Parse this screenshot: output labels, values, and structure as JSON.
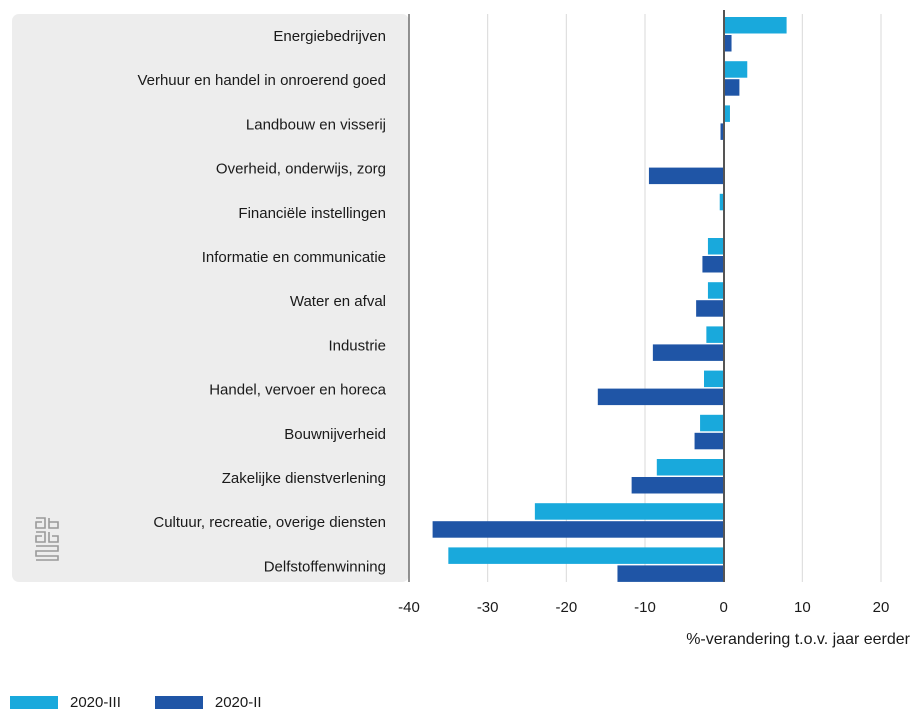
{
  "chart_data": {
    "type": "bar",
    "orientation": "horizontal",
    "categories": [
      "Energiebedrijven",
      "Verhuur en handel in onroerend goed",
      "Landbouw en visserij",
      "Overheid, onderwijs, zorg",
      "Financiële instellingen",
      "Informatie en communicatie",
      "Water en afval",
      "Industrie",
      "Handel, vervoer en horeca",
      "Bouwnijverheid",
      "Zakelijke dienstverlening",
      "Cultuur, recreatie, overige diensten",
      "Delfstoffenwinning"
    ],
    "series": [
      {
        "name": "2020-III",
        "color": "#19a9dc",
        "values": [
          8,
          3,
          0.8,
          0,
          -0.5,
          -2,
          -2,
          -2.2,
          -2.5,
          -3,
          -8.5,
          -24,
          -35
        ]
      },
      {
        "name": "2020-II",
        "color": "#1f55a6",
        "values": [
          1,
          2,
          -0.4,
          -9.5,
          0,
          -2.7,
          -3.5,
          -9,
          -16,
          -3.7,
          -11.7,
          -37,
          -13.5
        ]
      }
    ],
    "xlim": [
      -40,
      20
    ],
    "xticks": [
      -40,
      -30,
      -20,
      -10,
      0,
      10,
      20
    ],
    "xlabel": "%-verandering t.o.v. jaar eerder",
    "grid": true,
    "legend_position": "bottom-left"
  }
}
